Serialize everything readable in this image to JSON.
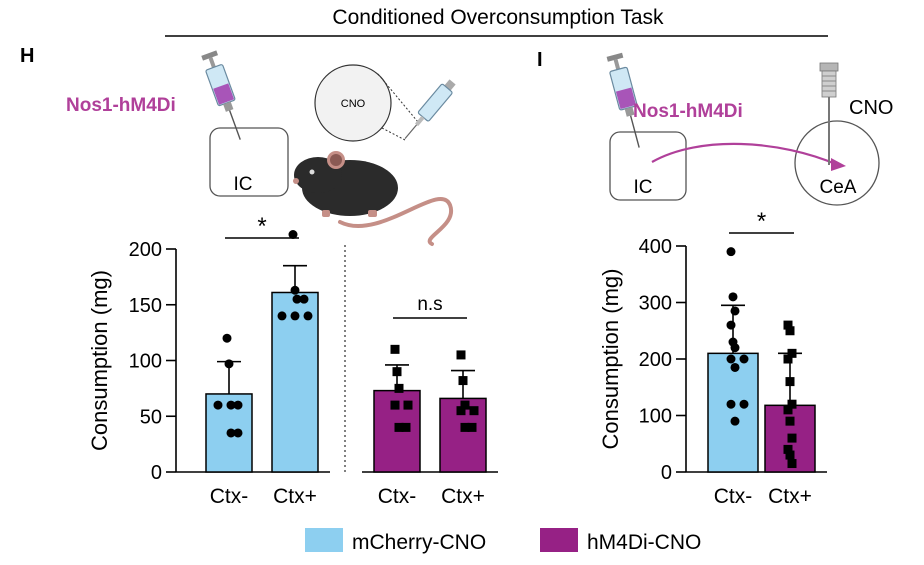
{
  "figure": {
    "title": "Conditioned Overconsumption Task",
    "colors": {
      "mcherry": "#8dcff0",
      "hm4di": "#962185",
      "virus_text": "#b0409a",
      "outline": "#000000"
    },
    "legend": {
      "items": [
        {
          "label": "mCherry-CNO",
          "color": "#8dcff0"
        },
        {
          "label": "hM4Di-CNO",
          "color": "#962185"
        }
      ]
    },
    "panel_h": {
      "letter": "H",
      "virus_label": "Nos1-hM4Di",
      "region_label": "IC",
      "cno_label": "CNO",
      "icons": [
        "syringe-icon",
        "mouse-icon",
        "brain-region-box"
      ]
    },
    "panel_i": {
      "letter": "I",
      "virus_label": "Nos1-hM4Di",
      "region_ic": "IC",
      "region_cea": "CeA",
      "cno_label": "CNO",
      "icons": [
        "syringe-icon",
        "cannula-icon",
        "projection-arrow"
      ]
    }
  },
  "chart_data": [
    {
      "type": "bar",
      "id": "panel-h-chart",
      "title": "",
      "ylabel": "Consumption (mg)",
      "xlabel": "",
      "ylim": [
        0,
        200
      ],
      "yticks": [
        "0",
        "50",
        "100",
        "150",
        "200"
      ],
      "groups": [
        {
          "bars": [
            {
              "label": "Ctx-",
              "series": "mCherry-CNO",
              "mean": 70,
              "sd": 29,
              "points": [
                120,
                97,
                60,
                60,
                60,
                35,
                35
              ]
            },
            {
              "label": "Ctx+",
              "series": "mCherry-CNO",
              "mean": 161,
              "sd": 24,
              "points": [
                213,
                163,
                155,
                155,
                140,
                140,
                140
              ]
            }
          ],
          "significance": {
            "from": 0,
            "to": 1,
            "label": "*"
          }
        },
        {
          "bars": [
            {
              "label": "Ctx-",
              "series": "hM4Di-CNO",
              "mean": 73,
              "sd": 23,
              "points": [
                110,
                90,
                75,
                60,
                60,
                40,
                40
              ]
            },
            {
              "label": "Ctx+",
              "series": "hM4Di-CNO",
              "mean": 66,
              "sd": 25,
              "points": [
                105,
                82,
                60,
                55,
                55,
                40,
                40
              ]
            }
          ],
          "significance": {
            "from": 0,
            "to": 1,
            "label": "n.s"
          }
        }
      ]
    },
    {
      "type": "bar",
      "id": "panel-i-chart",
      "title": "",
      "ylabel": "Consumption (mg)",
      "xlabel": "",
      "ylim": [
        0,
        400
      ],
      "yticks": [
        "0",
        "100",
        "200",
        "300",
        "400"
      ],
      "groups": [
        {
          "bars": [
            {
              "label": "Ctx-",
              "series": "mCherry-CNO",
              "mean": 210,
              "sd": 85,
              "points": [
                390,
                310,
                285,
                260,
                230,
                220,
                200,
                200,
                185,
                120,
                120,
                90
              ]
            },
            {
              "label": "Ctx+",
              "series": "hM4Di-CNO",
              "mean": 118,
              "sd": 92,
              "points": [
                260,
                250,
                210,
                200,
                160,
                120,
                110,
                90,
                60,
                40,
                30,
                15
              ]
            }
          ],
          "significance": {
            "from": 0,
            "to": 1,
            "label": "*"
          }
        }
      ]
    }
  ]
}
